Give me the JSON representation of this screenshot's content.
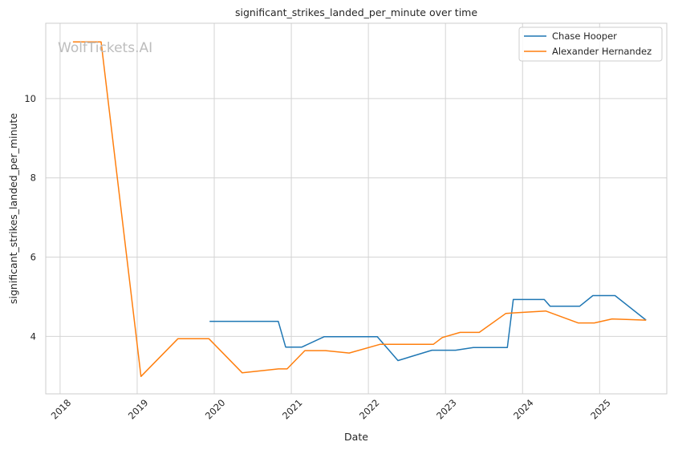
{
  "watermark": "WolfTickets.AI",
  "chart_data": {
    "type": "line",
    "title": "significant_strikes_landed_per_minute over time",
    "xlabel": "Date",
    "ylabel": "significant_strikes_landed_per_minute",
    "x_ticks": [
      "2018",
      "2019",
      "2020",
      "2021",
      "2022",
      "2023",
      "2024",
      "2025"
    ],
    "y_ticks": [
      4,
      6,
      8,
      10
    ],
    "xlim": [
      "2017-10-25",
      "2025-11-15"
    ],
    "ylim": [
      2.55,
      11.9
    ],
    "grid": true,
    "legend_position": "top-right",
    "series": [
      {
        "name": "Chase Hooper",
        "color": "#1f77b4",
        "points": [
          [
            "2019-12-10",
            4.38
          ],
          [
            "2020-10-31",
            4.38
          ],
          [
            "2020-12-05",
            3.73
          ],
          [
            "2021-02-20",
            3.73
          ],
          [
            "2021-06-05",
            3.99
          ],
          [
            "2022-02-12",
            3.99
          ],
          [
            "2022-05-21",
            3.39
          ],
          [
            "2022-10-29",
            3.65
          ],
          [
            "2023-02-18",
            3.65
          ],
          [
            "2023-05-13",
            3.72
          ],
          [
            "2023-10-21",
            3.72
          ],
          [
            "2023-11-18",
            4.93
          ],
          [
            "2024-04-13",
            4.93
          ],
          [
            "2024-05-11",
            4.76
          ],
          [
            "2024-09-28",
            4.76
          ],
          [
            "2024-11-30",
            5.03
          ],
          [
            "2025-03-15",
            5.03
          ],
          [
            "2025-08-09",
            4.41
          ]
        ]
      },
      {
        "name": "Alexander Hernandez",
        "color": "#ff7f0e",
        "points": [
          [
            "2018-03-03",
            11.43
          ],
          [
            "2018-07-14",
            11.43
          ],
          [
            "2019-01-19",
            2.99
          ],
          [
            "2019-07-13",
            3.94
          ],
          [
            "2019-12-07",
            3.94
          ],
          [
            "2020-05-13",
            3.08
          ],
          [
            "2020-11-01",
            3.18
          ],
          [
            "2020-12-12",
            3.18
          ],
          [
            "2021-03-06",
            3.64
          ],
          [
            "2021-06-12",
            3.64
          ],
          [
            "2021-10-02",
            3.58
          ],
          [
            "2022-02-26",
            3.8
          ],
          [
            "2022-11-05",
            3.8
          ],
          [
            "2022-12-17",
            3.97
          ],
          [
            "2023-03-11",
            4.1
          ],
          [
            "2023-06-10",
            4.1
          ],
          [
            "2023-10-14",
            4.58
          ],
          [
            "2024-04-20",
            4.64
          ],
          [
            "2024-09-21",
            4.34
          ],
          [
            "2024-12-07",
            4.34
          ],
          [
            "2025-03-01",
            4.44
          ],
          [
            "2025-08-09",
            4.41
          ]
        ]
      }
    ]
  }
}
